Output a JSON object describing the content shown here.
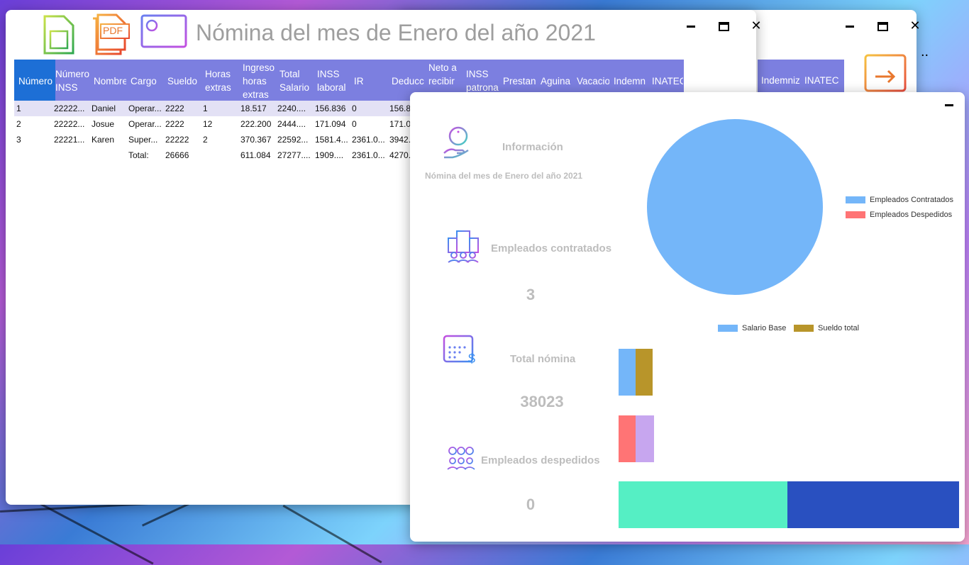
{
  "payroll_window": {
    "title": "Nómina del mes de Enero del año 2021",
    "toolbar_icons": [
      "excel-icon",
      "pdf-icon",
      "chart-dashboard-icon"
    ],
    "pdf_icon_text": "PDF",
    "columns": [
      "Número",
      "Número INSS",
      "Nombre",
      "Cargo",
      "Sueldo",
      "Horas extras",
      "Ingreso horas extras",
      "Total Salario",
      "INSS laboral",
      "IR",
      "Deducc",
      "Neto a recibir",
      "INSS patronal",
      "Prestan",
      "Aguina",
      "Vacacio",
      "Indemn",
      "INATEC"
    ],
    "rows": [
      {
        "num": "1",
        "inss": "22222...",
        "nombre": "Daniel",
        "cargo": "Operar...",
        "sueldo": "2222",
        "horas": "1",
        "ingreso": "18.517",
        "total": "2240....",
        "inss_lab": "156.836",
        "ir": "0",
        "deducc": "156.8..."
      },
      {
        "num": "2",
        "inss": "22222...",
        "nombre": "Josue",
        "cargo": "Operar...",
        "sueldo": "2222",
        "horas": "12",
        "ingreso": "222.200",
        "total": "2444....",
        "inss_lab": "171.094",
        "ir": "0",
        "deducc": "171.09..."
      },
      {
        "num": "3",
        "inss": "22221...",
        "nombre": "Karen",
        "cargo": "Super...",
        "sueldo": "22222",
        "horas": "2",
        "ingreso": "370.367",
        "total": "22592...",
        "inss_lab": "1581.4...",
        "ir": "2361.0...",
        "deducc": "3942..."
      }
    ],
    "total_row": {
      "label": "Total:",
      "sueldo": "26666",
      "ingreso": "611.084",
      "total": "27277....",
      "inss_lab": "1909....",
      "ir": "2361.0...",
      "deducc": "4270..."
    }
  },
  "back_window": {
    "columns_visible": [
      "Indemniz",
      "INATEC"
    ],
    "trailing_text": ".."
  },
  "dashboard": {
    "info_label": "Información",
    "subtitle": "Nómina del mes de Enero del año 2021",
    "hired_label": "Empleados contratados",
    "hired_value": "3",
    "total_label": "Total nómina",
    "total_value": "38023",
    "fired_label": "Empleados despedidos",
    "fired_value": "0",
    "pie_legend": [
      "Empleados Contratados",
      "Empleados Despedidos"
    ],
    "bar_legend": [
      "Salario Base",
      "Sueldo total"
    ]
  },
  "chart_data": [
    {
      "type": "pie",
      "categories": [
        "Empleados Contratados",
        "Empleados Despedidos"
      ],
      "values": [
        3,
        0
      ],
      "colors": [
        "#74b6f9",
        "#ff7475"
      ]
    },
    {
      "type": "bar",
      "series": [
        {
          "name": "Salario Base",
          "color": "#74b6f9"
        },
        {
          "name": "Sueldo total",
          "color": "#b8952a"
        }
      ],
      "extra_colors": [
        "#ff7475",
        "#c7a6ef",
        "#55efc4",
        "#2950c0"
      ]
    }
  ],
  "colors": {
    "header_bg": "#7c7fe0",
    "selected_header": "#1d6fd6",
    "selected_row": "#e3e1f5"
  }
}
